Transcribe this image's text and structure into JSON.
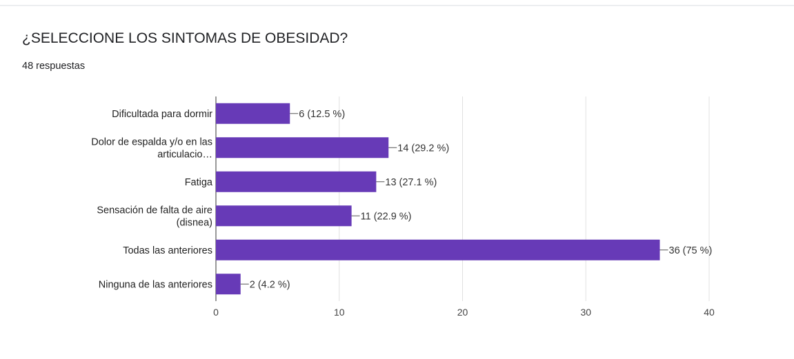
{
  "chart_data": {
    "type": "bar",
    "orientation": "horizontal",
    "title": "¿SELECCIONE LOS SINTOMAS DE OBESIDAD?",
    "subtitle": "48 respuestas",
    "categories": [
      "Dificultada para dormir",
      "Dolor de espalda y/o en las articulacio…",
      "Fatiga",
      "Sensación de falta de aire (disnea)",
      "Todas las anteriores",
      "Ninguna de las anteriores"
    ],
    "values": [
      6,
      14,
      13,
      11,
      36,
      2
    ],
    "value_labels": [
      "6 (12.5 %)",
      "14 (29.2 %)",
      "13 (27.1 %)",
      "11 (22.9 %)",
      "36 (75 %)",
      "2 (4.2 %)"
    ],
    "color": "#673ab7",
    "xlim": [
      0,
      40
    ],
    "xticks": [
      0,
      10,
      20,
      30,
      40
    ],
    "grid": true
  }
}
